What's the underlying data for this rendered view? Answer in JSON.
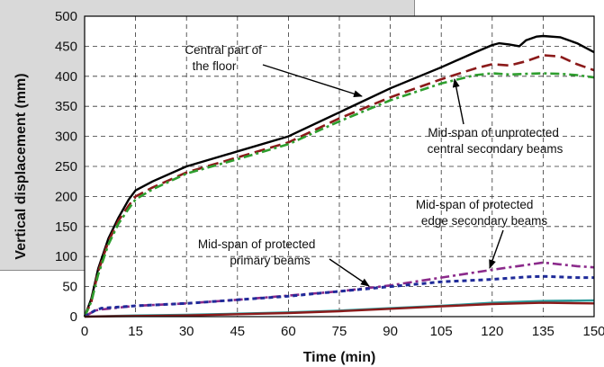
{
  "chart_data": {
    "type": "line",
    "title": "",
    "xlabel": "Time (min)",
    "ylabel": "Vertical displacement (mm)",
    "xlim": [
      0,
      150
    ],
    "ylim": [
      0,
      500
    ],
    "xticks": [
      0,
      15,
      30,
      45,
      60,
      75,
      90,
      105,
      120,
      135,
      150
    ],
    "yticks": [
      0,
      50,
      100,
      150,
      200,
      250,
      300,
      350,
      400,
      450,
      500
    ],
    "grid": true,
    "legend": "none",
    "series": [
      {
        "color": "#000000",
        "dash": "solid",
        "x": [
          0,
          2,
          4,
          7,
          10,
          13,
          15,
          20,
          30,
          45,
          60,
          75,
          90,
          105,
          115,
          120,
          122,
          125,
          128,
          130,
          133,
          135,
          140,
          145,
          150
        ],
        "y": [
          0,
          30,
          80,
          130,
          165,
          195,
          210,
          225,
          250,
          275,
          300,
          340,
          380,
          415,
          440,
          452,
          455,
          453,
          450,
          460,
          466,
          467,
          465,
          455,
          440
        ]
      },
      {
        "color": "#8b1a1a",
        "dash": "long-dash",
        "x": [
          0,
          2,
          4,
          7,
          10,
          13,
          15,
          20,
          30,
          45,
          60,
          75,
          90,
          105,
          115,
          120,
          125,
          130,
          135,
          140,
          145,
          150
        ],
        "y": [
          0,
          25,
          75,
          125,
          160,
          185,
          200,
          215,
          240,
          265,
          290,
          330,
          365,
          395,
          413,
          420,
          418,
          425,
          435,
          433,
          420,
          410
        ]
      },
      {
        "color": "#2e9e2e",
        "dash": "dash-dot",
        "x": [
          0,
          2,
          4,
          7,
          10,
          13,
          15,
          20,
          30,
          45,
          60,
          75,
          90,
          105,
          115,
          120,
          125,
          130,
          135,
          140,
          145,
          150
        ],
        "y": [
          0,
          25,
          70,
          120,
          155,
          180,
          195,
          212,
          238,
          262,
          287,
          325,
          360,
          388,
          402,
          405,
          403,
          404,
          405,
          404,
          402,
          398
        ]
      },
      {
        "color": "#8b2a8b",
        "dash": "dash-dot",
        "x": [
          0,
          3,
          5,
          15,
          30,
          45,
          60,
          75,
          90,
          105,
          120,
          125,
          130,
          135,
          140,
          145,
          150
        ],
        "y": [
          0,
          10,
          12,
          18,
          22,
          28,
          35,
          42,
          52,
          65,
          78,
          82,
          86,
          90,
          87,
          84,
          82
        ]
      },
      {
        "color": "#1f2b99",
        "dash": "dotted",
        "x": [
          0,
          3,
          5,
          15,
          30,
          45,
          60,
          75,
          90,
          105,
          120,
          125,
          130,
          135,
          140,
          145,
          150
        ],
        "y": [
          0,
          10,
          14,
          18,
          22,
          28,
          34,
          42,
          50,
          58,
          62,
          64,
          66,
          67,
          66,
          65,
          65
        ]
      },
      {
        "color": "#2a9a9a",
        "dash": "solid",
        "x": [
          0,
          15,
          30,
          45,
          60,
          75,
          90,
          105,
          120,
          135,
          150
        ],
        "y": [
          0,
          2,
          3,
          5,
          7,
          10,
          14,
          18,
          23,
          26,
          27
        ]
      },
      {
        "color": "#8b1a1a",
        "dash": "solid",
        "x": [
          0,
          15,
          30,
          45,
          60,
          75,
          90,
          105,
          120,
          135,
          150
        ],
        "y": [
          0,
          1,
          2,
          4,
          6,
          9,
          13,
          17,
          21,
          23,
          22
        ]
      }
    ],
    "annotations": [
      {
        "lines": [
          "Central part of",
          "the floor"
        ]
      },
      {
        "lines": [
          "Mid-span of unprotected",
          "central secondary beams"
        ]
      },
      {
        "lines": [
          "Mid-span of protected",
          "edge secondary beams"
        ]
      },
      {
        "lines": [
          "Mid-span of protected",
          "primary beams"
        ]
      }
    ]
  }
}
